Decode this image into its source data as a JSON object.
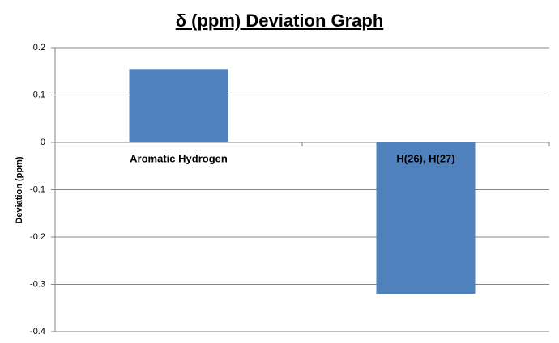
{
  "chart_data": {
    "type": "bar",
    "title": "δ (ppm) Deviation Graph",
    "y_label": "Deviation (ppm)",
    "categories": [
      "Aromatic Hydrogen",
      "H(26), H(27)"
    ],
    "values": [
      0.155,
      -0.32
    ],
    "color": "#4f81bd",
    "ylim": [
      -0.4,
      0.2
    ],
    "yticks": [
      -0.4,
      -0.3,
      -0.2,
      -0.1,
      0,
      0.1,
      0.2
    ],
    "grid": true
  }
}
